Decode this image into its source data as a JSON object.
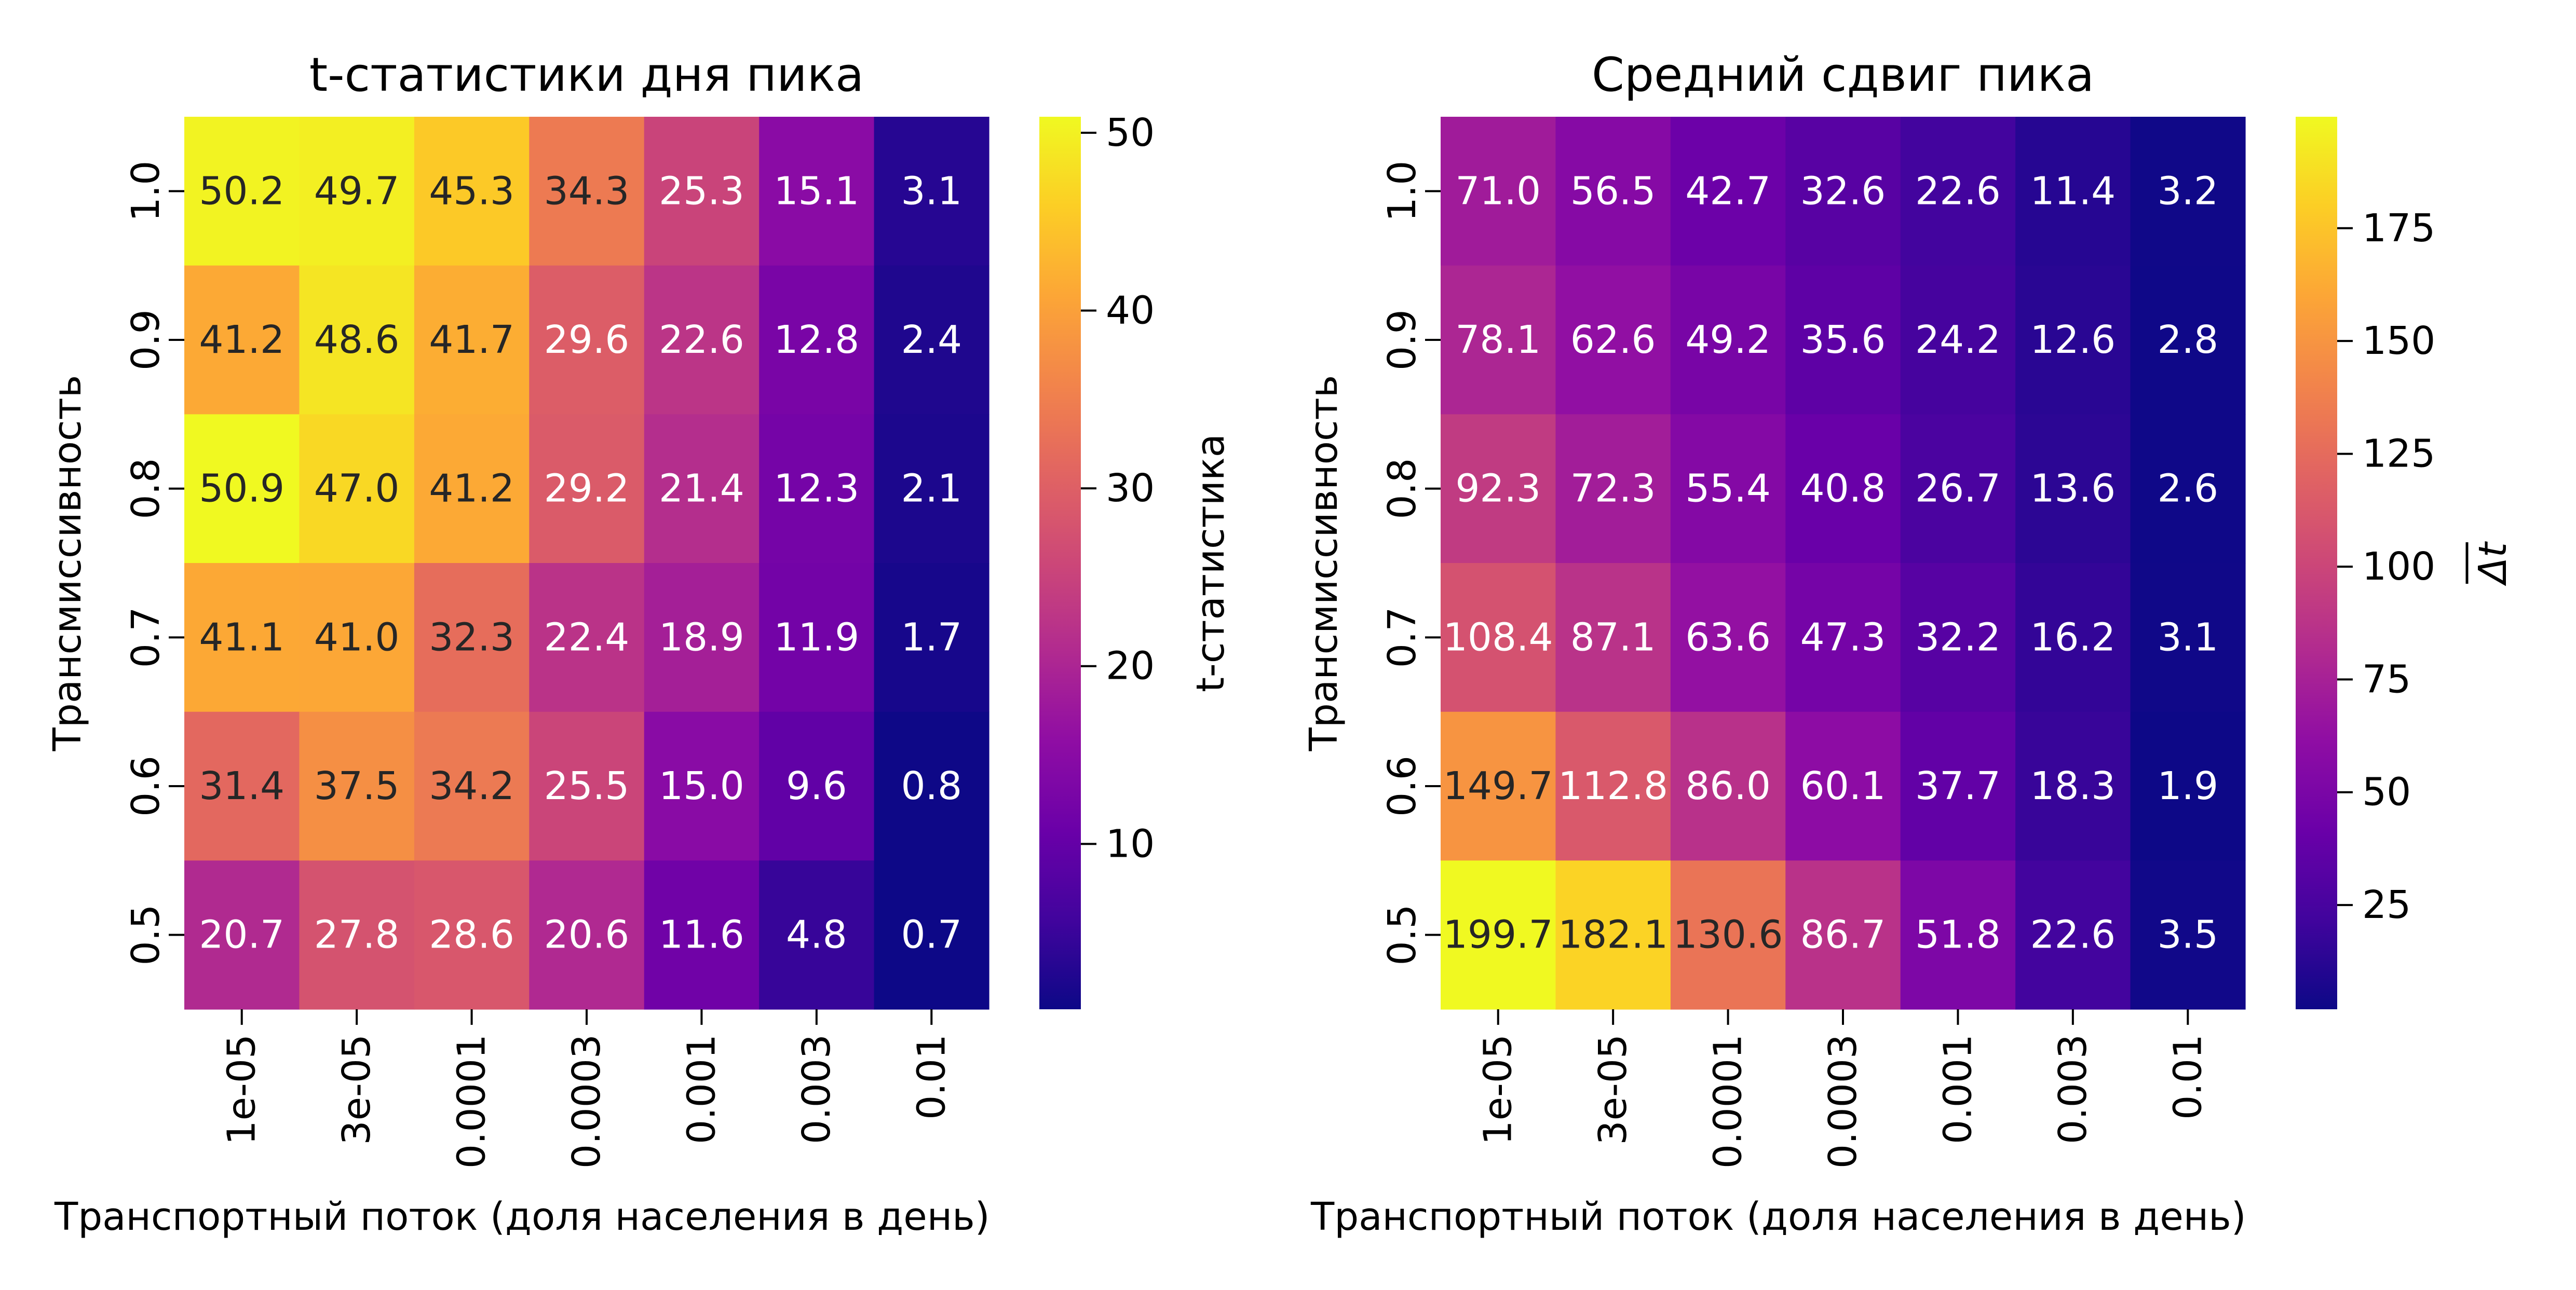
{
  "figure": {
    "background": "#ffffff",
    "colormap": "plasma"
  },
  "chart_data": [
    {
      "type": "heatmap",
      "title": "t-статистики дня пика",
      "xlabel": "Транспортный поток (доля населения в день)",
      "ylabel": "Трансмиссивность",
      "x_categories": [
        "1e-05",
        "3e-05",
        "0.0001",
        "0.0003",
        "0.001",
        "0.003",
        "0.01"
      ],
      "y_categories": [
        "1.0",
        "0.9",
        "0.8",
        "0.7",
        "0.6",
        "0.5"
      ],
      "values": [
        [
          50.2,
          49.7,
          45.3,
          34.3,
          25.3,
          15.1,
          3.1
        ],
        [
          41.2,
          48.6,
          41.7,
          29.6,
          22.6,
          12.8,
          2.4
        ],
        [
          50.9,
          47.0,
          41.2,
          29.2,
          21.4,
          12.3,
          2.1
        ],
        [
          41.1,
          41.0,
          32.3,
          22.4,
          18.9,
          11.9,
          1.7
        ],
        [
          31.4,
          37.5,
          34.2,
          25.5,
          15.0,
          9.6,
          0.8
        ],
        [
          20.7,
          27.8,
          28.6,
          20.6,
          11.6,
          4.8,
          0.7
        ]
      ],
      "colorbar": {
        "label": "t-статистика",
        "vmin": 0.7,
        "vmax": 50.9,
        "ticks": [
          "10",
          "20",
          "30",
          "40",
          "50"
        ]
      }
    },
    {
      "type": "heatmap",
      "title": "Средний сдвиг пика",
      "xlabel": "Транспортный поток (доля населения в день)",
      "ylabel": "Трансмиссивность",
      "x_categories": [
        "1e-05",
        "3e-05",
        "0.0001",
        "0.0003",
        "0.001",
        "0.003",
        "0.01"
      ],
      "y_categories": [
        "1.0",
        "0.9",
        "0.8",
        "0.7",
        "0.6",
        "0.5"
      ],
      "values": [
        [
          71.0,
          56.5,
          42.7,
          32.6,
          22.6,
          11.4,
          3.2
        ],
        [
          78.1,
          62.6,
          49.2,
          35.6,
          24.2,
          12.6,
          2.8
        ],
        [
          92.3,
          72.3,
          55.4,
          40.8,
          26.7,
          13.6,
          2.6
        ],
        [
          108.4,
          87.1,
          63.6,
          47.3,
          32.2,
          16.2,
          3.1
        ],
        [
          149.7,
          112.8,
          86.0,
          60.1,
          37.7,
          18.3,
          1.9
        ],
        [
          199.7,
          182.1,
          130.6,
          86.7,
          51.8,
          22.6,
          3.5
        ]
      ],
      "colorbar": {
        "label": "Δt (overlined)",
        "vmin": 1.9,
        "vmax": 199.7,
        "ticks": [
          "25",
          "50",
          "75",
          "100",
          "125",
          "150",
          "175"
        ]
      }
    }
  ]
}
